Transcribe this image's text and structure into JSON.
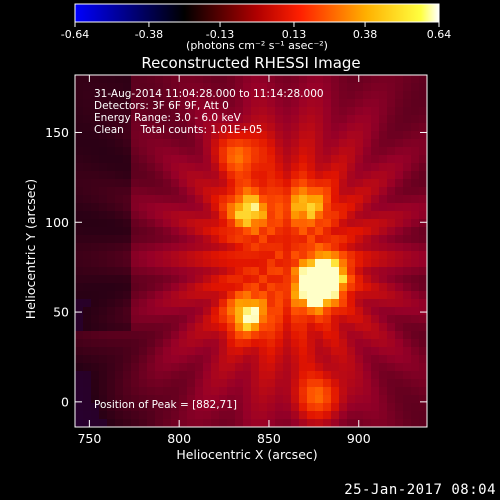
{
  "colorbar": {
    "ticks": [
      "-0.64",
      "-0.38",
      "-0.13",
      "0.13",
      "0.38",
      "0.64"
    ],
    "tick_values": [
      -0.64,
      -0.38,
      -0.13,
      0.13,
      0.38,
      0.64
    ],
    "range": [
      -0.64,
      0.64
    ],
    "units": "(photons cm⁻² s⁻¹ asec⁻²)",
    "colors": [
      "#0000ff",
      "#000000",
      "#ff0000",
      "#ffff00",
      "#ffffff"
    ]
  },
  "chart_data": {
    "type": "heatmap",
    "title": "Reconstructed RHESSI Image",
    "xlabel": "Heliocentric X (arcsec)",
    "ylabel": "Heliocentric Y (arcsec)",
    "xlim": [
      742,
      938
    ],
    "ylim": [
      -14,
      182
    ],
    "xticks": [
      750,
      800,
      850,
      900
    ],
    "yticks": [
      0,
      50,
      100,
      150
    ],
    "info_lines": [
      "31-Aug-2014 11:04:28.000 to 11:14:28.000",
      "Detectors: 3F 6F 9F, Att 0",
      "Energy Range: 3.0 - 6.0 keV",
      "Clean     Total counts: 1.01E+05"
    ],
    "peak_label": "Position of Peak = [882,71]",
    "peak": [
      882,
      71
    ],
    "sources": [
      {
        "x": 882,
        "y": 71,
        "intensity": 0.64
      },
      {
        "x": 876,
        "y": 62,
        "intensity": 0.6
      },
      {
        "x": 838,
        "y": 48,
        "intensity": 0.55
      },
      {
        "x": 838,
        "y": 107,
        "intensity": 0.5
      },
      {
        "x": 872,
        "y": 110,
        "intensity": 0.42
      },
      {
        "x": 834,
        "y": 138,
        "intensity": 0.38
      },
      {
        "x": 878,
        "y": 3,
        "intensity": 0.38
      }
    ]
  },
  "footer": {
    "date": "25-Jan-2017 08:04"
  }
}
